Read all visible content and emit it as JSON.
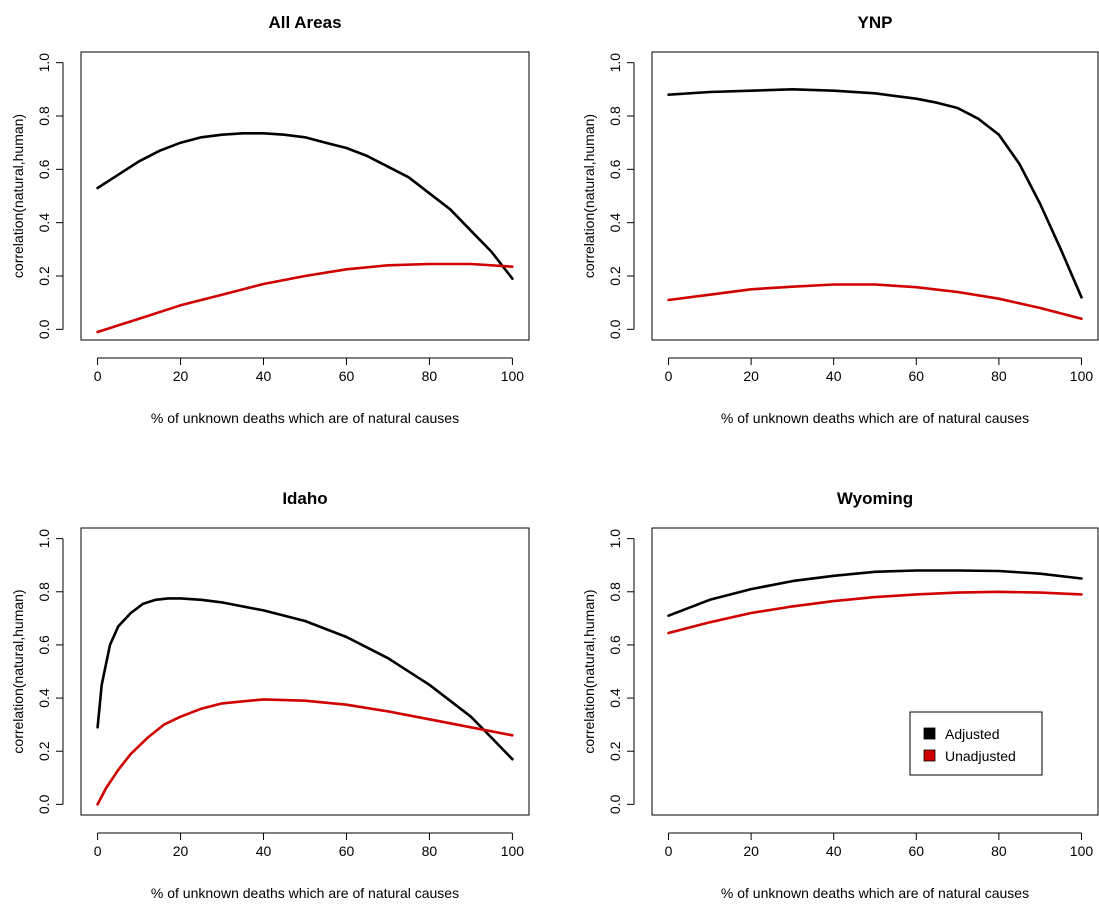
{
  "chart_data": [
    {
      "type": "line",
      "title": "All Areas",
      "xlabel": "% of unknown deaths which are of natural causes",
      "ylabel": "correlation(natural,human)",
      "xlim": [
        0,
        100
      ],
      "ylim": [
        0,
        1
      ],
      "xticks": [
        "0",
        "20",
        "40",
        "60",
        "80",
        "100"
      ],
      "yticks": [
        "0.0",
        "0.2",
        "0.4",
        "0.6",
        "0.8",
        "1.0"
      ],
      "series": [
        {
          "name": "Adjusted",
          "color": "#000000",
          "x": [
            0,
            5,
            10,
            15,
            20,
            25,
            30,
            35,
            40,
            45,
            50,
            55,
            60,
            65,
            70,
            75,
            80,
            85,
            90,
            95,
            100
          ],
          "y": [
            0.53,
            0.58,
            0.63,
            0.67,
            0.7,
            0.72,
            0.73,
            0.735,
            0.735,
            0.73,
            0.72,
            0.7,
            0.68,
            0.65,
            0.61,
            0.57,
            0.51,
            0.45,
            0.37,
            0.29,
            0.19
          ]
        },
        {
          "name": "Unadjusted",
          "color": "#d00000",
          "x": [
            0,
            10,
            20,
            30,
            40,
            50,
            60,
            70,
            80,
            90,
            100
          ],
          "y": [
            -0.01,
            0.04,
            0.09,
            0.13,
            0.17,
            0.2,
            0.225,
            0.24,
            0.245,
            0.245,
            0.235
          ]
        }
      ]
    },
    {
      "type": "line",
      "title": "YNP",
      "xlabel": "% of unknown deaths which are of natural causes",
      "ylabel": "correlation(natural,human)",
      "xlim": [
        0,
        100
      ],
      "ylim": [
        0,
        1
      ],
      "xticks": [
        "0",
        "20",
        "40",
        "60",
        "80",
        "100"
      ],
      "yticks": [
        "0.0",
        "0.2",
        "0.4",
        "0.6",
        "0.8",
        "1.0"
      ],
      "series": [
        {
          "name": "Adjusted",
          "color": "#000000",
          "x": [
            0,
            10,
            20,
            30,
            40,
            50,
            60,
            65,
            70,
            75,
            80,
            85,
            90,
            95,
            100
          ],
          "y": [
            0.88,
            0.89,
            0.895,
            0.9,
            0.895,
            0.885,
            0.865,
            0.85,
            0.83,
            0.79,
            0.73,
            0.62,
            0.47,
            0.3,
            0.12
          ]
        },
        {
          "name": "Unadjusted",
          "color": "#d00000",
          "x": [
            0,
            10,
            20,
            30,
            40,
            50,
            60,
            70,
            80,
            90,
            100
          ],
          "y": [
            0.11,
            0.13,
            0.15,
            0.16,
            0.168,
            0.168,
            0.158,
            0.14,
            0.115,
            0.08,
            0.04
          ]
        }
      ]
    },
    {
      "type": "line",
      "title": "Idaho",
      "xlabel": "% of unknown deaths which are of natural causes",
      "ylabel": "correlation(natural,human)",
      "xlim": [
        0,
        100
      ],
      "ylim": [
        0,
        1
      ],
      "xticks": [
        "0",
        "20",
        "40",
        "60",
        "80",
        "100"
      ],
      "yticks": [
        "0.0",
        "0.2",
        "0.4",
        "0.6",
        "0.8",
        "1.0"
      ],
      "series": [
        {
          "name": "Adjusted",
          "color": "#000000",
          "x": [
            0,
            1,
            3,
            5,
            8,
            11,
            14,
            17,
            20,
            25,
            30,
            40,
            50,
            60,
            70,
            80,
            90,
            95,
            100
          ],
          "y": [
            0.29,
            0.45,
            0.6,
            0.67,
            0.72,
            0.755,
            0.77,
            0.775,
            0.775,
            0.77,
            0.76,
            0.73,
            0.69,
            0.63,
            0.55,
            0.45,
            0.33,
            0.25,
            0.17
          ]
        },
        {
          "name": "Unadjusted",
          "color": "#d00000",
          "x": [
            0,
            2,
            5,
            8,
            12,
            16,
            20,
            25,
            30,
            40,
            50,
            60,
            70,
            80,
            90,
            100
          ],
          "y": [
            0.0,
            0.06,
            0.13,
            0.19,
            0.25,
            0.3,
            0.33,
            0.36,
            0.38,
            0.395,
            0.39,
            0.375,
            0.35,
            0.32,
            0.29,
            0.26
          ]
        }
      ]
    },
    {
      "type": "line",
      "title": "Wyoming",
      "xlabel": "% of unknown deaths which are of natural causes",
      "ylabel": "correlation(natural,human)",
      "xlim": [
        0,
        100
      ],
      "ylim": [
        0,
        1
      ],
      "xticks": [
        "0",
        "20",
        "40",
        "60",
        "80",
        "100"
      ],
      "yticks": [
        "0.0",
        "0.2",
        "0.4",
        "0.6",
        "0.8",
        "1.0"
      ],
      "legend": {
        "position": "bottom-right",
        "entries": [
          {
            "label": "Adjusted",
            "color": "#000000"
          },
          {
            "label": "Unadjusted",
            "color": "#d00000"
          }
        ]
      },
      "series": [
        {
          "name": "Adjusted",
          "color": "#000000",
          "x": [
            0,
            10,
            20,
            30,
            40,
            50,
            60,
            70,
            80,
            90,
            100
          ],
          "y": [
            0.71,
            0.77,
            0.81,
            0.84,
            0.86,
            0.875,
            0.88,
            0.88,
            0.878,
            0.868,
            0.85
          ]
        },
        {
          "name": "Unadjusted",
          "color": "#d00000",
          "x": [
            0,
            10,
            20,
            30,
            40,
            50,
            60,
            70,
            80,
            90,
            100
          ],
          "y": [
            0.645,
            0.685,
            0.72,
            0.745,
            0.765,
            0.78,
            0.79,
            0.797,
            0.8,
            0.797,
            0.79
          ]
        }
      ]
    }
  ]
}
